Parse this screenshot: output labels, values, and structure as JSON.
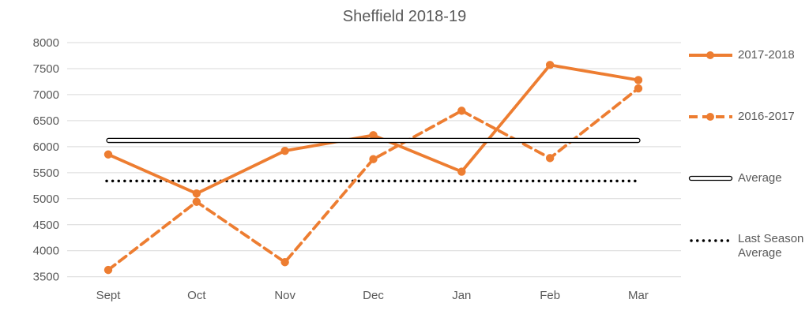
{
  "chart_data": {
    "type": "line",
    "title": "Sheffield 2018-19",
    "categories": [
      "Sept",
      "Oct",
      "Nov",
      "Dec",
      "Jan",
      "Feb",
      "Mar"
    ],
    "series": [
      {
        "name": "2017-2018",
        "style": "solid",
        "color": "#ED7D31",
        "marker": "circle",
        "values": [
          5850,
          5100,
          5920,
          6220,
          5520,
          7570,
          7280
        ]
      },
      {
        "name": "2016-2017",
        "style": "dashed",
        "color": "#ED7D31",
        "marker": "circle",
        "values": [
          3630,
          4940,
          3780,
          5760,
          6690,
          5780,
          7120
        ]
      }
    ],
    "reference_lines": [
      {
        "name": "Average",
        "style": "double-solid",
        "color": "#000000",
        "value": 6120
      },
      {
        "name": "Last Season Average",
        "style": "dotted",
        "color": "#000000",
        "value": 5340
      }
    ],
    "ylim": [
      3500,
      8000
    ],
    "ytick_step": 500,
    "xlabel": "",
    "ylabel": "",
    "grid": true,
    "legend_position": "right",
    "colors": {
      "series_orange": "#ED7D31",
      "reference_black": "#000000",
      "gridline": "#D9D9D9",
      "text": "#595959"
    }
  }
}
